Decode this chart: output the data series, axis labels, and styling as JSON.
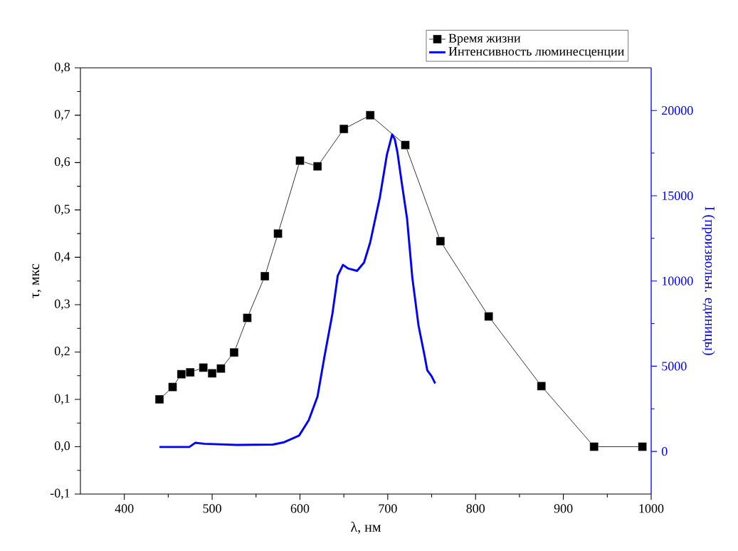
{
  "chart_data": {
    "type": "line",
    "xlabel": "λ, нм",
    "ylabel": "τ, мкс",
    "y2label": "I (произвольн. единицы)",
    "legend": "top right",
    "xlim": [
      350,
      1000
    ],
    "xticks": [
      400,
      500,
      600,
      700,
      800,
      900,
      1000
    ],
    "ylim": [
      -0.1,
      0.8
    ],
    "yticks": [
      {
        "value": -0.1,
        "label": "-0,1"
      },
      {
        "value": 0,
        "label": "0,0"
      },
      {
        "value": 0.1,
        "label": "0,1"
      },
      {
        "value": 0.2,
        "label": "0,2"
      },
      {
        "value": 0.3,
        "label": "0,3"
      },
      {
        "value": 0.4,
        "label": "0,4"
      },
      {
        "value": 0.5,
        "label": "0,5"
      },
      {
        "value": 0.6,
        "label": "0,6"
      },
      {
        "value": 0.7,
        "label": "0,7"
      },
      {
        "value": 0.8,
        "label": "0,8"
      }
    ],
    "y2lim": [
      -2500,
      22500
    ],
    "y2ticks": [
      0,
      5000,
      10000,
      15000,
      20000
    ],
    "series": [
      {
        "name": "Время жизни",
        "color": "#000000",
        "marker": "square",
        "x": [
          440,
          455,
          465,
          475,
          490,
          500,
          510,
          525,
          540,
          560,
          575,
          600,
          620,
          650,
          680,
          720,
          760,
          815,
          875,
          935,
          990
        ],
        "values": [
          0.1,
          0.126,
          0.153,
          0.157,
          0.167,
          0.155,
          0.165,
          0.199,
          0.272,
          0.36,
          0.45,
          0.604,
          0.592,
          0.671,
          0.7,
          0.637,
          0.434,
          0.275,
          0.128,
          0,
          0
        ]
      },
      {
        "name": "Интенсивность люминесценции",
        "color": "#0000ff",
        "marker": "none",
        "axis": "y2",
        "x": [
          440,
          474,
          481,
          491,
          528,
          569,
          582,
          599,
          610,
          620,
          628,
          637,
          643,
          649,
          655,
          665,
          673,
          680,
          691,
          699,
          704,
          705,
          708,
          711,
          716,
          722,
          728,
          735,
          742,
          745,
          750,
          754
        ],
        "values": [
          260,
          260,
          510,
          450,
          380,
          400,
          540,
          930,
          1830,
          3220,
          5590,
          8090,
          10300,
          10940,
          10730,
          10590,
          11080,
          12260,
          14900,
          17400,
          18380,
          18590,
          18310,
          17550,
          15740,
          13650,
          10180,
          7400,
          5590,
          4760,
          4410,
          3990
        ]
      }
    ]
  }
}
